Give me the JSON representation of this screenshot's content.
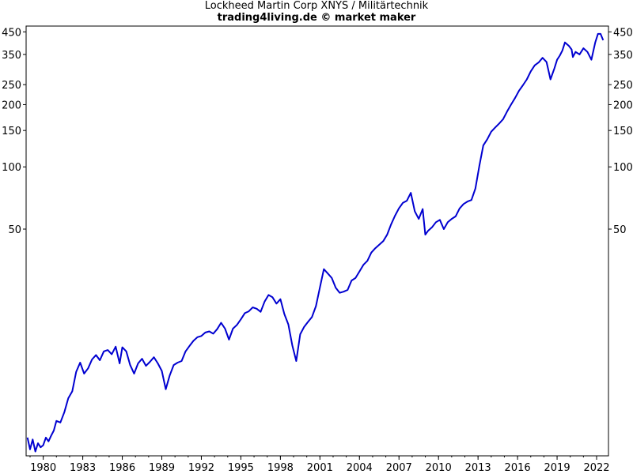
{
  "chart_data": {
    "type": "line",
    "title": "Lockheed Martin Corp XNYS / Militärtechnik",
    "subtitle": "trading4living.de © market maker",
    "xlabel": "",
    "ylabel": "",
    "y_scale": "log",
    "xlim": [
      1978.7,
      2022.9
    ],
    "ylim": [
      4,
      480
    ],
    "x_ticks": [
      "1980",
      "1983",
      "1986",
      "1989",
      "1992",
      "1995",
      "1998",
      "2001",
      "2004",
      "2007",
      "2010",
      "2013",
      "2016",
      "2019",
      "2022"
    ],
    "y_ticks": [
      "450",
      "350",
      "250",
      "200",
      "150",
      "100",
      "50"
    ],
    "y_tick_values": [
      450,
      350,
      250,
      200,
      150,
      100,
      50
    ],
    "grid": false,
    "line_color": "#0000d0",
    "series": [
      {
        "x": [
          1978.8,
          1979.0,
          1979.2,
          1979.4,
          1979.6,
          1979.8,
          1980.0,
          1980.2,
          1980.4,
          1980.6,
          1980.8,
          1981.0,
          1981.3,
          1981.6,
          1981.9,
          1982.2,
          1982.5,
          1982.8,
          1983.1,
          1983.4,
          1983.7,
          1984.0,
          1984.3,
          1984.6,
          1984.9,
          1985.2,
          1985.5,
          1985.8,
          1986.0,
          1986.3,
          1986.6,
          1986.9,
          1987.2,
          1987.5,
          1987.8,
          1988.1,
          1988.4,
          1988.7,
          1989.0,
          1989.3,
          1989.6,
          1989.9,
          1990.2,
          1990.5,
          1990.8,
          1991.1,
          1991.4,
          1991.7,
          1992.0,
          1992.3,
          1992.6,
          1992.9,
          1993.2,
          1993.5,
          1993.8,
          1994.1,
          1994.4,
          1994.7,
          1995.0,
          1995.3,
          1995.6,
          1995.9,
          1996.2,
          1996.5,
          1996.8,
          1997.1,
          1997.4,
          1997.7,
          1998.0,
          1998.3,
          1998.6,
          1998.9,
          1999.2,
          1999.5,
          1999.8,
          2000.1,
          2000.4,
          2000.7,
          2001.0,
          2001.3,
          2001.6,
          2001.9,
          2002.2,
          2002.5,
          2002.8,
          2003.1,
          2003.4,
          2003.7,
          2004.0,
          2004.3,
          2004.6,
          2004.9,
          2005.2,
          2005.5,
          2005.8,
          2006.1,
          2006.4,
          2006.7,
          2007.0,
          2007.3,
          2007.6,
          2007.9,
          2008.2,
          2008.5,
          2008.8,
          2009.0,
          2009.2,
          2009.5,
          2009.8,
          2010.1,
          2010.4,
          2010.7,
          2011.0,
          2011.3,
          2011.6,
          2011.9,
          2012.2,
          2012.5,
          2012.8,
          2013.1,
          2013.4,
          2013.7,
          2014.0,
          2014.3,
          2014.6,
          2014.9,
          2015.2,
          2015.5,
          2015.8,
          2016.1,
          2016.4,
          2016.7,
          2017.0,
          2017.3,
          2017.6,
          2017.9,
          2018.2,
          2018.5,
          2018.8,
          2019.0,
          2019.2,
          2019.4,
          2019.6,
          2019.9,
          2020.1,
          2020.2,
          2020.4,
          2020.7,
          2021.0,
          2021.3,
          2021.6,
          2021.9,
          2022.1,
          2022.3,
          2022.5
        ],
        "y": [
          4.9,
          4.3,
          4.8,
          4.2,
          4.6,
          4.4,
          4.5,
          4.9,
          4.7,
          5.0,
          5.3,
          5.9,
          5.8,
          6.5,
          7.6,
          8.2,
          10.2,
          11.3,
          10.0,
          10.6,
          11.7,
          12.3,
          11.6,
          12.8,
          13.0,
          12.4,
          13.5,
          11.2,
          13.4,
          12.8,
          11.0,
          10.0,
          11.2,
          11.8,
          10.9,
          11.4,
          12.0,
          11.2,
          10.3,
          8.4,
          9.8,
          11.0,
          11.3,
          11.5,
          12.8,
          13.6,
          14.4,
          15.0,
          15.2,
          15.8,
          16.0,
          15.6,
          16.4,
          17.6,
          16.5,
          14.6,
          16.5,
          17.2,
          18.3,
          19.6,
          20.0,
          20.9,
          20.6,
          19.9,
          22.3,
          24.0,
          23.4,
          21.8,
          22.9,
          19.4,
          17.3,
          13.7,
          11.5,
          15.5,
          16.8,
          17.8,
          18.8,
          21.2,
          26.1,
          32.0,
          30.5,
          29.0,
          26.0,
          24.6,
          24.9,
          25.4,
          28.2,
          29.0,
          31.2,
          33.6,
          35.1,
          38.5,
          40.4,
          42.0,
          43.7,
          47.0,
          52.6,
          58.0,
          63.0,
          67.0,
          68.6,
          74.9,
          61.0,
          56.0,
          62.5,
          47.0,
          49.0,
          51.0,
          54.0,
          55.4,
          50.0,
          54.0,
          56.0,
          57.6,
          62.9,
          66.1,
          68.0,
          69.1,
          78.5,
          101.0,
          127.0,
          136.0,
          148.0,
          155.0,
          162.0,
          170.0,
          185.0,
          200.0,
          215.0,
          233.0,
          248.0,
          265.0,
          290.0,
          310.0,
          320.0,
          337.0,
          322.0,
          265.0,
          300.0,
          330.0,
          345.0,
          365.0,
          400.0,
          385.0,
          370.0,
          340.0,
          360.0,
          350.0,
          375.0,
          360.0,
          330.0,
          400.0,
          440.0,
          440.0,
          410.0
        ]
      }
    ]
  }
}
